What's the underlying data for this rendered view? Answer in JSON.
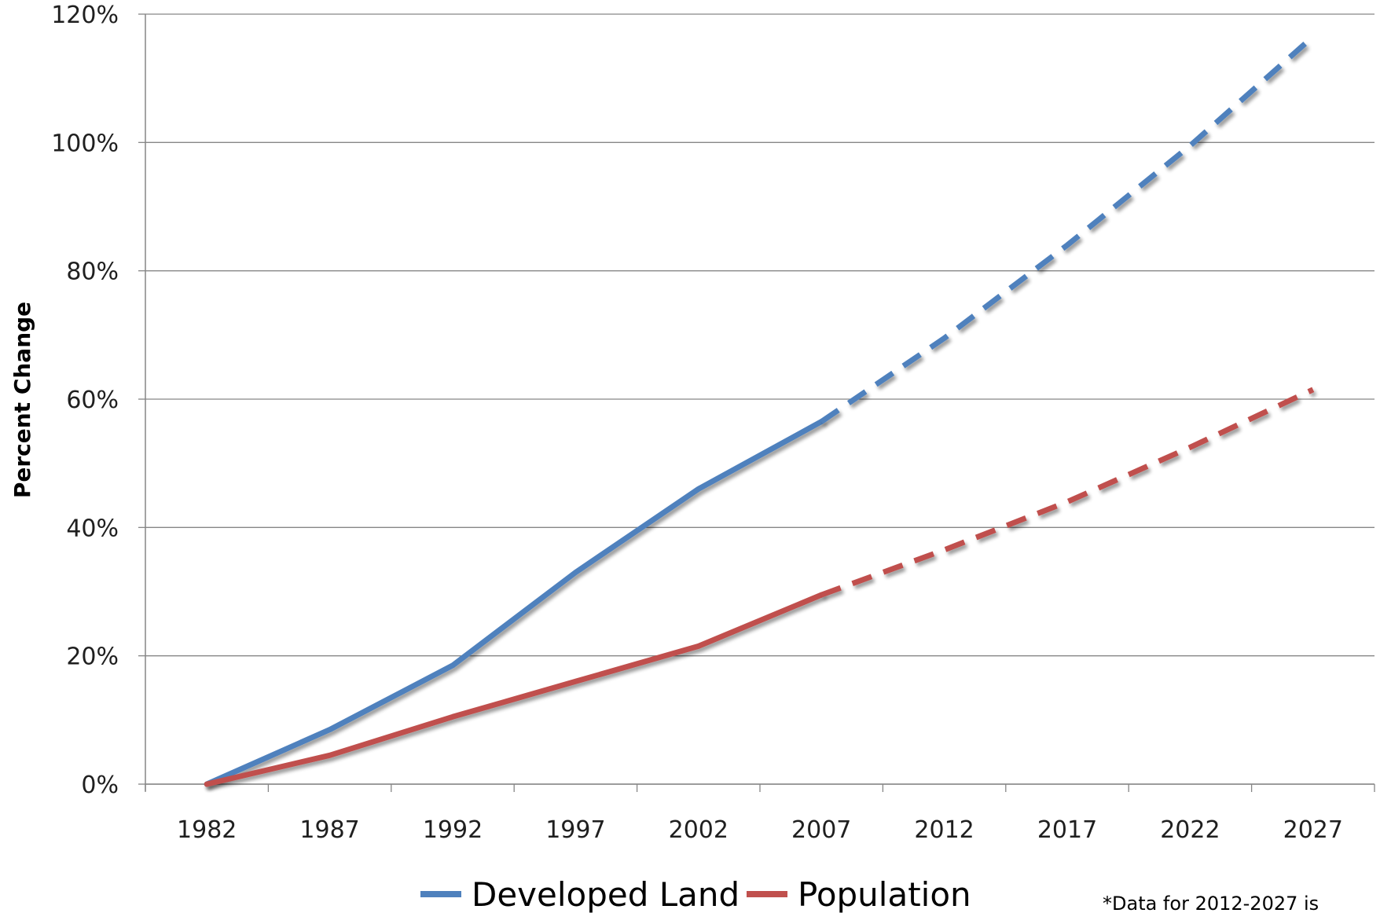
{
  "chart_data": {
    "type": "line",
    "title": "",
    "xlabel": "",
    "ylabel": "Percent Change",
    "categories": [
      "1982",
      "1987",
      "1992",
      "1997",
      "2002",
      "2007",
      "2012",
      "2017",
      "2022",
      "2027"
    ],
    "y_tick_labels": [
      "0%",
      "20%",
      "40%",
      "60%",
      "80%",
      "100%",
      "120%"
    ],
    "ylim": [
      0,
      120
    ],
    "grid": true,
    "legend_position": "bottom",
    "series": [
      {
        "name": "Developed Land",
        "color": "#4F81BD",
        "values": [
          0,
          8.5,
          18.5,
          33,
          46,
          56.5,
          69.5,
          84,
          99.5,
          116.5
        ],
        "projected_from": "2007"
      },
      {
        "name": "Population",
        "color": "#C0504D",
        "values": [
          0,
          4.5,
          10.5,
          16,
          21.5,
          29.5,
          36.5,
          44,
          52.5,
          61.5
        ],
        "projected_from": "2007"
      }
    ],
    "footnote": "*Data for 2012-2027 is"
  }
}
